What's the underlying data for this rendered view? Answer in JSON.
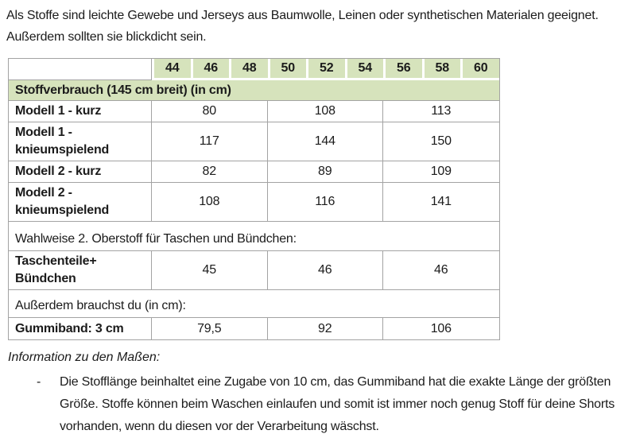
{
  "intro": {
    "text": "Als Stoffe sind leichte Gewebe und Jerseys aus Baumwolle, Leinen oder synthetischen Materialen geeignet. Außerdem sollten sie blickdicht sein."
  },
  "table": {
    "sizes": [
      "44",
      "46",
      "48",
      "50",
      "52",
      "54",
      "56",
      "58",
      "60"
    ],
    "section1_header": "Stoffverbrauch (145 cm breit) (in cm)",
    "rows": [
      {
        "label": "Modell 1 - kurz",
        "values": [
          "80",
          "108",
          "113"
        ]
      },
      {
        "label": "Modell 1 - knieumspielend",
        "values": [
          "117",
          "144",
          "150"
        ]
      },
      {
        "label": "Modell 2 - kurz",
        "values": [
          "82",
          "89",
          "109"
        ]
      },
      {
        "label": "Modell 2 - knieumspielend",
        "values": [
          "108",
          "116",
          "141"
        ]
      }
    ],
    "section2_header": "Wahlweise 2. Oberstoff für Taschen und Bündchen:",
    "section2_row": {
      "label": "Taschenteile+ Bündchen",
      "values": [
        "45",
        "46",
        "46"
      ]
    },
    "section3_header": "Außerdem brauchst du (in cm):",
    "section3_row": {
      "label": "Gummiband: 3 cm",
      "values": [
        "79,5",
        "92",
        "106"
      ]
    }
  },
  "info": {
    "heading": "Information zu den Maßen:",
    "bullet": {
      "marker": "-",
      "text": "Die Stofflänge beinhaltet eine Zugabe von 10 cm, das Gummiband hat die exakte Länge der größten Größe. Stoffe können beim Waschen einlaufen und somit ist immer noch genug Stoff für deine Shorts vorhanden, wenn du diesen vor der Verarbeitung wäschst."
    }
  },
  "colors": {
    "table_header_green": "#d6e3bc",
    "table_border_gray": "#a3a3a3"
  }
}
